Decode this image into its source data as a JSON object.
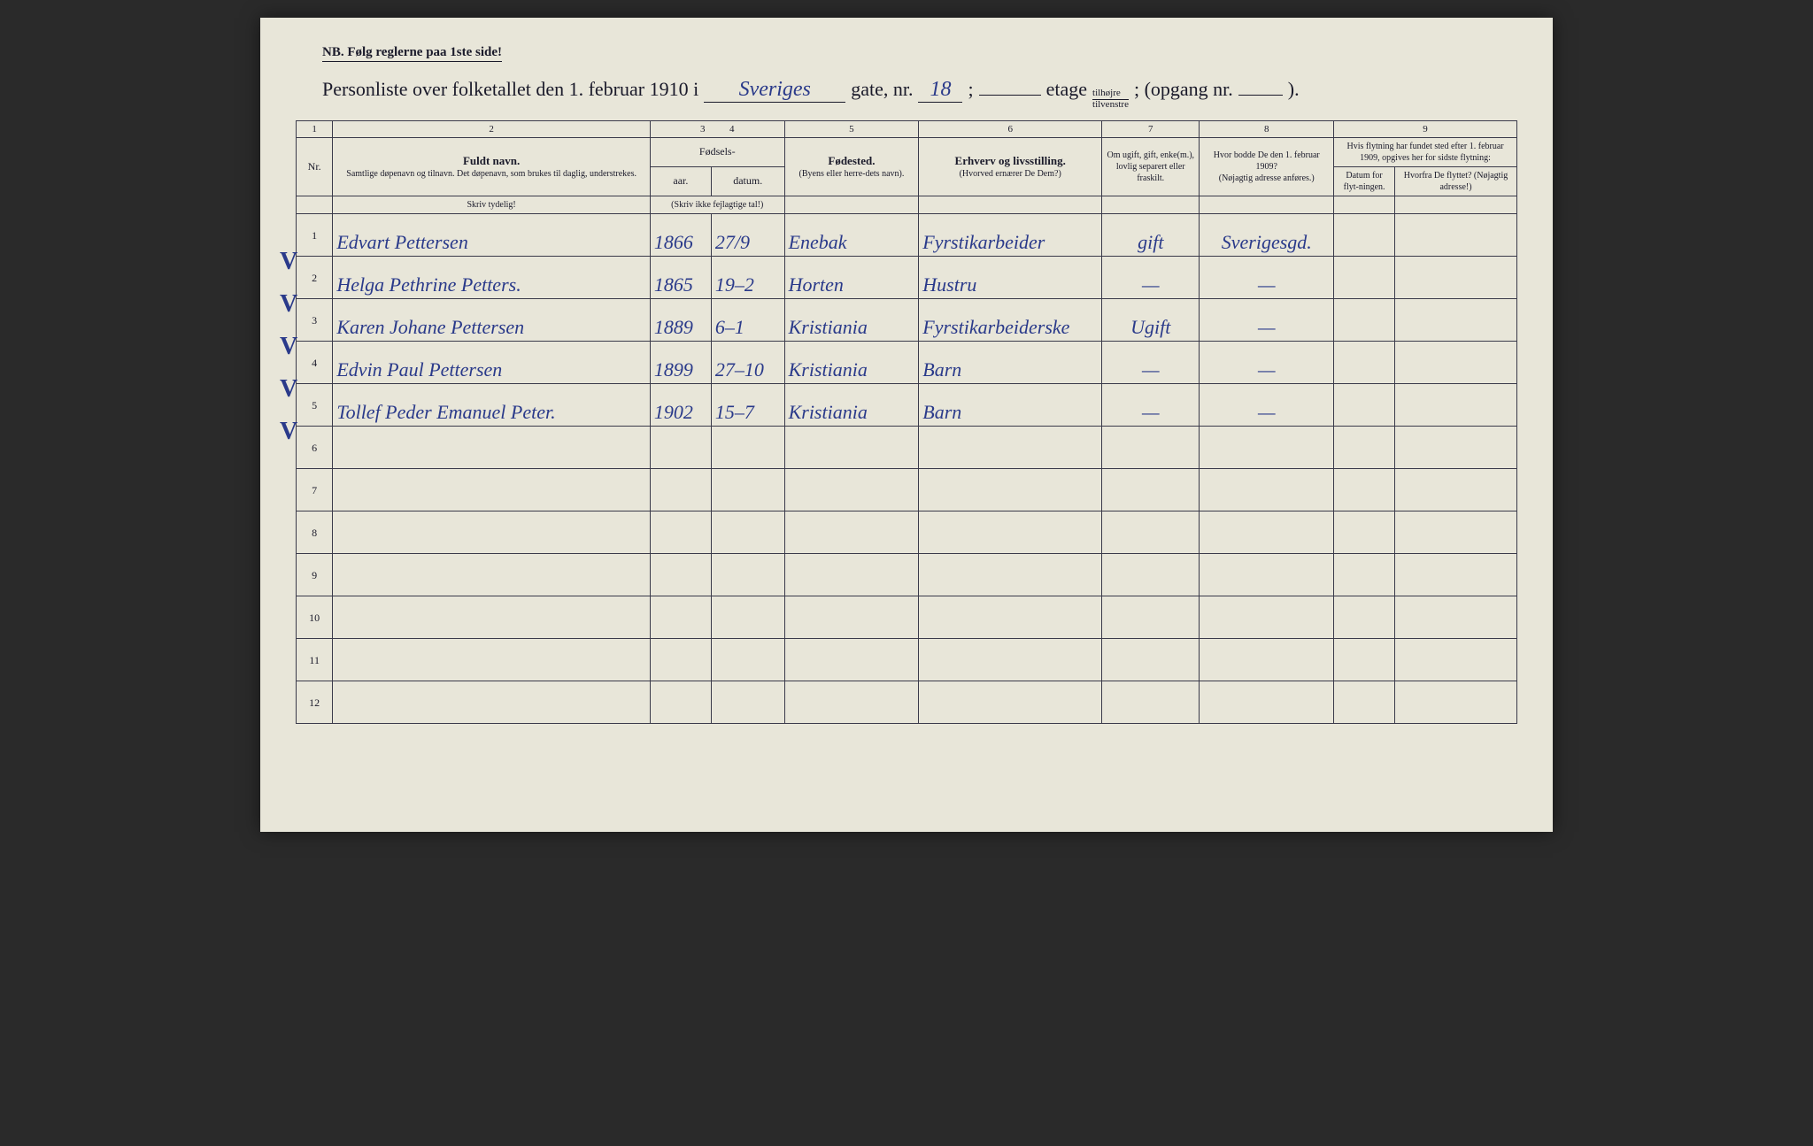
{
  "nb_text": "NB.   Følg reglerne paa 1ste side!",
  "title": {
    "prefix": "Personliste over folketallet den 1. februar 1910 i",
    "street": "Sveriges",
    "gate_label": "gate, nr.",
    "gate_nr": "18",
    "semicolon": ";",
    "etage_label": "etage",
    "frac_top": "tilhøjre",
    "frac_bot": "tilvenstre",
    "opgang_label": "; (opgang nr.",
    "opgang_nr": "",
    "close": ")."
  },
  "colnums": [
    "1",
    "2",
    "3",
    "4",
    "5",
    "6",
    "7",
    "8",
    "9"
  ],
  "headers": {
    "nr": "Nr.",
    "fuldt_navn": "Fuldt navn.",
    "fuldt_sub": "Samtlige døpenavn og tilnavn.  Det døpenavn, som brukes til daglig, understrekes.",
    "fodsels": "Fødsels-",
    "aar": "aar.",
    "datum": "datum.",
    "fodsels_sub": "(Skriv ikke fejlagtige tal!)",
    "fodested": "Fødested.",
    "fodested_sub": "(Byens eller herre-dets navn).",
    "erhverv": "Erhverv og livsstilling.",
    "erhverv_sub": "(Hvorved ernærer De Dem?)",
    "ugift": "Om ugift, gift, enke(m.), lovlig separert eller fraskilt.",
    "bodde": "Hvor bodde De den 1. februar 1909?",
    "bodde_sub": "(Nøjagtig adresse anføres.)",
    "flytning": "Hvis flytning har fundet sted efter 1. februar 1909, opgives her for sidste flytning:",
    "flyt_datum": "Datum for flyt-ningen.",
    "flyt_hvorfra": "Hvorfra De flyttet? (Nøjagtig adresse!)",
    "skriv_tydelig": "Skriv tydelig!"
  },
  "rows": [
    {
      "n": "1",
      "check": "V",
      "name": "Edvart Pettersen",
      "year": "1866",
      "date": "27/9",
      "place": "Enebak",
      "occ": "Fyrstikarbeider",
      "status": "gift",
      "addr": "Sverigesgd.",
      "fd": "",
      "ff": ""
    },
    {
      "n": "2",
      "check": "V",
      "name": "Helga Pethrine Petters.",
      "year": "1865",
      "date": "19–2",
      "place": "Horten",
      "occ": "Hustru",
      "status": "—",
      "addr": "—",
      "fd": "",
      "ff": ""
    },
    {
      "n": "3",
      "check": "V",
      "name": "Karen Johane Pettersen",
      "year": "1889",
      "date": "6–1",
      "place": "Kristiania",
      "occ": "Fyrstikarbeiderske",
      "status": "Ugift",
      "addr": "—",
      "fd": "",
      "ff": ""
    },
    {
      "n": "4",
      "check": "V",
      "name": "Edvin Paul Pettersen",
      "year": "1899",
      "date": "27–10",
      "place": "Kristiania",
      "occ": "Barn",
      "status": "—",
      "addr": "—",
      "fd": "",
      "ff": ""
    },
    {
      "n": "5",
      "check": "V",
      "name": "Tollef Peder Emanuel Peter.",
      "year": "1902",
      "date": "15–7",
      "place": "Kristiania",
      "occ": "Barn",
      "status": "—",
      "addr": "—",
      "fd": "",
      "ff": ""
    },
    {
      "n": "6",
      "check": "",
      "name": "",
      "year": "",
      "date": "",
      "place": "",
      "occ": "",
      "status": "",
      "addr": "",
      "fd": "",
      "ff": ""
    },
    {
      "n": "7",
      "check": "",
      "name": "",
      "year": "",
      "date": "",
      "place": "",
      "occ": "",
      "status": "",
      "addr": "",
      "fd": "",
      "ff": ""
    },
    {
      "n": "8",
      "check": "",
      "name": "",
      "year": "",
      "date": "",
      "place": "",
      "occ": "",
      "status": "",
      "addr": "",
      "fd": "",
      "ff": ""
    },
    {
      "n": "9",
      "check": "",
      "name": "",
      "year": "",
      "date": "",
      "place": "",
      "occ": "",
      "status": "",
      "addr": "",
      "fd": "",
      "ff": ""
    },
    {
      "n": "10",
      "check": "",
      "name": "",
      "year": "",
      "date": "",
      "place": "",
      "occ": "",
      "status": "",
      "addr": "",
      "fd": "",
      "ff": ""
    },
    {
      "n": "11",
      "check": "",
      "name": "",
      "year": "",
      "date": "",
      "place": "",
      "occ": "",
      "status": "",
      "addr": "",
      "fd": "",
      "ff": ""
    },
    {
      "n": "12",
      "check": "",
      "name": "",
      "year": "",
      "date": "",
      "place": "",
      "occ": "",
      "status": "",
      "addr": "",
      "fd": "",
      "ff": ""
    }
  ],
  "colors": {
    "paper": "#e8e6d9",
    "ink": "#1a1a2a",
    "handwriting": "#2a3a8a",
    "border": "#3a3a4a"
  },
  "col_widths_pct": [
    3,
    26,
    5,
    6,
    11,
    15,
    8,
    11,
    5,
    10
  ]
}
